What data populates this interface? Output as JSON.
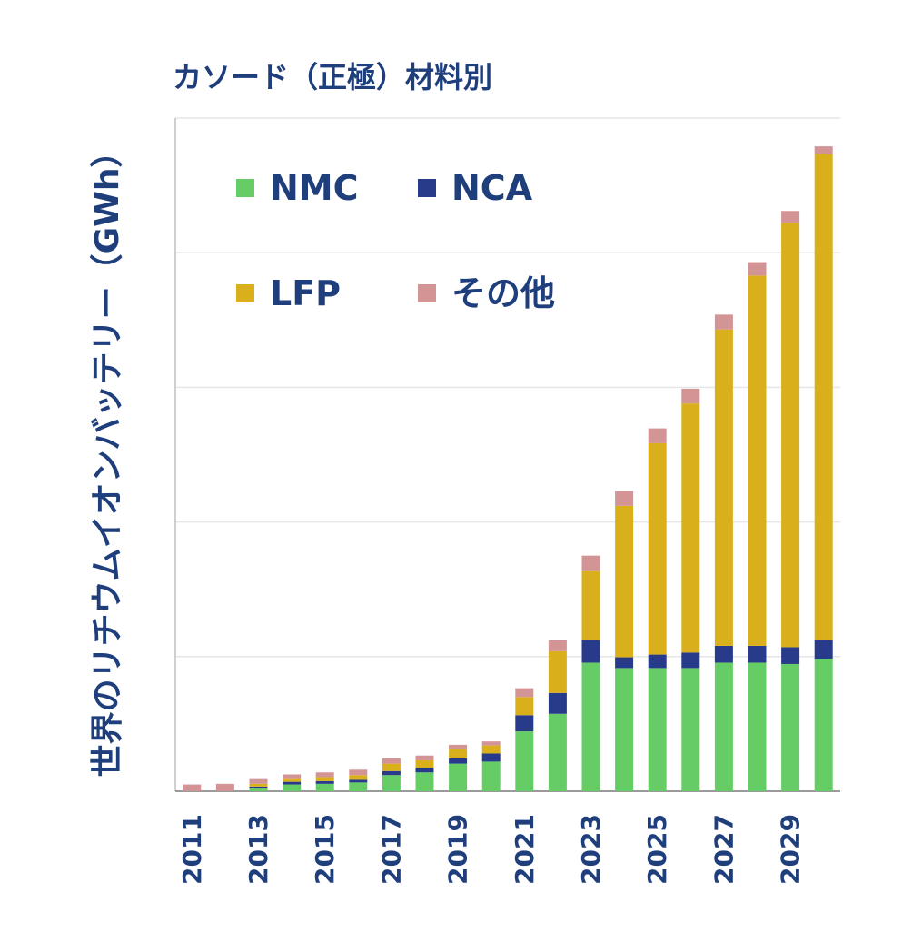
{
  "chart_data": {
    "type": "bar",
    "stacked": true,
    "title": "カソード（正極）材料別",
    "ylabel": "世界のリチウムイオンバッテリー（GWh）",
    "xlabel": "",
    "categories": [
      "2011",
      "2012",
      "2013",
      "2014",
      "2015",
      "2016",
      "2017",
      "2018",
      "2019",
      "2020",
      "2021",
      "2022",
      "2023",
      "2024",
      "2025",
      "2026",
      "2027",
      "2028",
      "2029",
      "2030"
    ],
    "x_tick_labels": [
      "2011",
      "2013",
      "2015",
      "2017",
      "2019",
      "2021",
      "2023",
      "2025",
      "2027",
      "2029"
    ],
    "ylim": [
      0,
      100
    ],
    "y_tick_labels_shown": false,
    "grid": true,
    "legend_position": "top-left",
    "series": [
      {
        "name": "NMC",
        "color": "#66cc66",
        "values": [
          0,
          0,
          0.4,
          1.0,
          1.1,
          1.3,
          2.4,
          2.8,
          4.1,
          4.4,
          8.9,
          11.5,
          19.1,
          18.3,
          18.3,
          18.3,
          19.1,
          19.1,
          18.9,
          19.7
        ]
      },
      {
        "name": "NCA",
        "color": "#283a8a",
        "values": [
          0,
          0,
          0.3,
          0.4,
          0.4,
          0.4,
          0.6,
          0.7,
          0.8,
          1.2,
          2.4,
          3.1,
          3.4,
          1.6,
          2.0,
          2.3,
          2.5,
          2.5,
          2.5,
          2.8
        ]
      },
      {
        "name": "LFP",
        "color": "#d9b01c",
        "values": [
          0,
          0,
          0.4,
          0.4,
          0.6,
          0.7,
          1.1,
          1.1,
          1.4,
          1.2,
          2.7,
          6.2,
          10.2,
          22.5,
          31.4,
          37.0,
          47.0,
          55.0,
          63.0,
          72.1
        ]
      },
      {
        "name": "その他",
        "color": "#d39496",
        "values": [
          1.0,
          1.1,
          0.7,
          0.7,
          0.7,
          0.8,
          0.8,
          0.7,
          0.6,
          0.6,
          1.3,
          1.6,
          2.3,
          2.2,
          2.2,
          2.2,
          2.2,
          2.0,
          1.8,
          1.2
        ]
      }
    ]
  }
}
